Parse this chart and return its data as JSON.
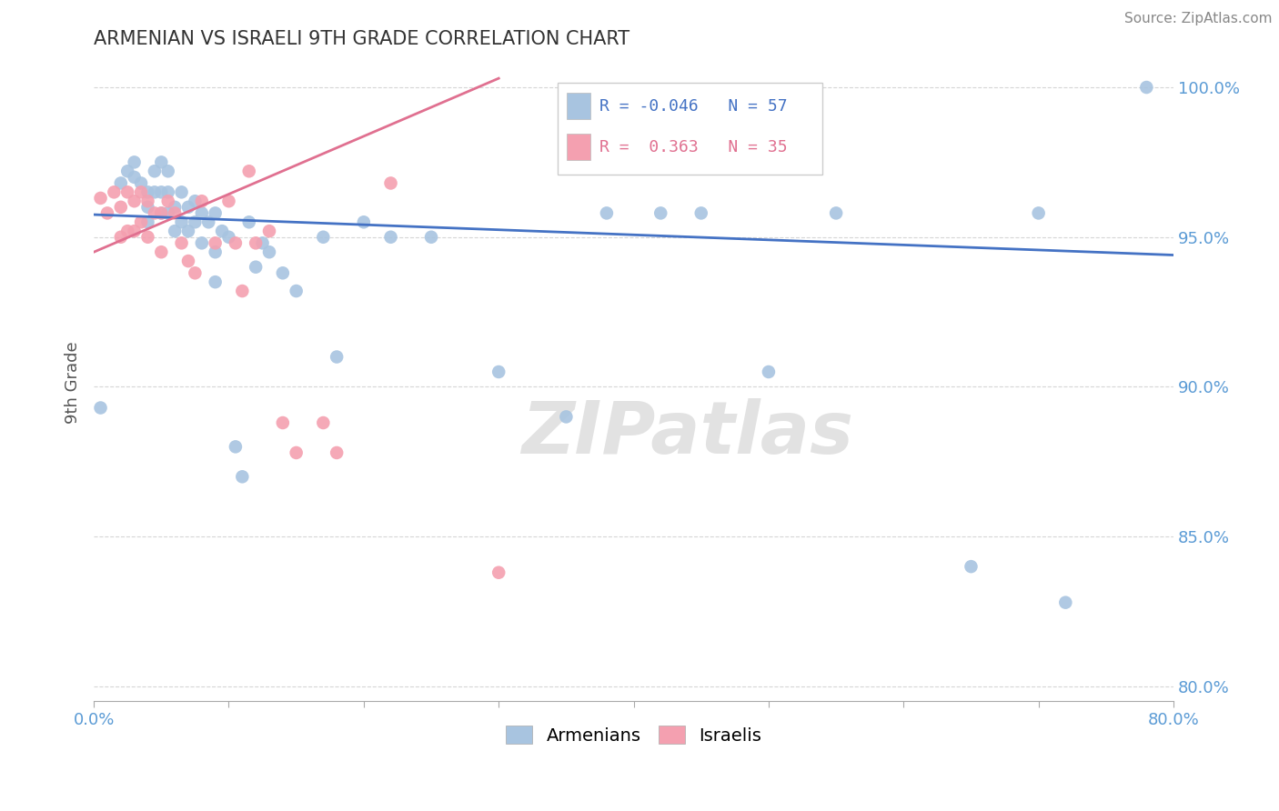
{
  "title": "ARMENIAN VS ISRAELI 9TH GRADE CORRELATION CHART",
  "source": "Source: ZipAtlas.com",
  "ylabel": "9th Grade",
  "xlim": [
    0.0,
    0.8
  ],
  "ylim": [
    0.795,
    1.008
  ],
  "xticks": [
    0.0,
    0.1,
    0.2,
    0.3,
    0.4,
    0.5,
    0.6,
    0.7,
    0.8
  ],
  "xticklabels": [
    "0.0%",
    "",
    "",
    "",
    "",
    "",
    "",
    "",
    "80.0%"
  ],
  "yticks": [
    0.8,
    0.85,
    0.9,
    0.95,
    1.0
  ],
  "yticklabels": [
    "80.0%",
    "85.0%",
    "90.0%",
    "95.0%",
    "100.0%"
  ],
  "armenian_R": -0.046,
  "armenian_N": 57,
  "israeli_R": 0.363,
  "israeli_N": 35,
  "armenian_color": "#a8c4e0",
  "israeli_color": "#f4a0b0",
  "armenian_line_color": "#4472c4",
  "israeli_line_color": "#e07090",
  "background_color": "#ffffff",
  "title_color": "#333333",
  "axis_color": "#5b9bd5",
  "grid_color": "#cccccc",
  "armenian_x": [
    0.005,
    0.02,
    0.025,
    0.03,
    0.03,
    0.035,
    0.04,
    0.04,
    0.04,
    0.045,
    0.045,
    0.05,
    0.05,
    0.05,
    0.055,
    0.055,
    0.055,
    0.06,
    0.06,
    0.065,
    0.065,
    0.07,
    0.07,
    0.075,
    0.075,
    0.08,
    0.08,
    0.085,
    0.09,
    0.09,
    0.09,
    0.095,
    0.1,
    0.105,
    0.11,
    0.115,
    0.12,
    0.125,
    0.13,
    0.14,
    0.15,
    0.17,
    0.18,
    0.2,
    0.22,
    0.25,
    0.3,
    0.35,
    0.38,
    0.42,
    0.45,
    0.5,
    0.55,
    0.65,
    0.7,
    0.72,
    0.78
  ],
  "armenian_y": [
    0.893,
    0.968,
    0.972,
    0.975,
    0.97,
    0.968,
    0.965,
    0.96,
    0.955,
    0.972,
    0.965,
    0.975,
    0.965,
    0.958,
    0.972,
    0.965,
    0.958,
    0.96,
    0.952,
    0.965,
    0.955,
    0.96,
    0.952,
    0.962,
    0.955,
    0.958,
    0.948,
    0.955,
    0.958,
    0.945,
    0.935,
    0.952,
    0.95,
    0.88,
    0.87,
    0.955,
    0.94,
    0.948,
    0.945,
    0.938,
    0.932,
    0.95,
    0.91,
    0.955,
    0.95,
    0.95,
    0.905,
    0.89,
    0.958,
    0.958,
    0.958,
    0.905,
    0.958,
    0.84,
    0.958,
    0.828,
    1.0
  ],
  "israeli_x": [
    0.005,
    0.01,
    0.015,
    0.02,
    0.02,
    0.025,
    0.025,
    0.03,
    0.03,
    0.035,
    0.035,
    0.04,
    0.04,
    0.045,
    0.05,
    0.05,
    0.055,
    0.06,
    0.065,
    0.07,
    0.075,
    0.08,
    0.09,
    0.1,
    0.105,
    0.11,
    0.115,
    0.12,
    0.13,
    0.14,
    0.15,
    0.17,
    0.18,
    0.22,
    0.3
  ],
  "israeli_y": [
    0.963,
    0.958,
    0.965,
    0.96,
    0.95,
    0.965,
    0.952,
    0.962,
    0.952,
    0.965,
    0.955,
    0.962,
    0.95,
    0.958,
    0.958,
    0.945,
    0.962,
    0.958,
    0.948,
    0.942,
    0.938,
    0.962,
    0.948,
    0.962,
    0.948,
    0.932,
    0.972,
    0.948,
    0.952,
    0.888,
    0.878,
    0.888,
    0.878,
    0.968,
    0.838
  ]
}
